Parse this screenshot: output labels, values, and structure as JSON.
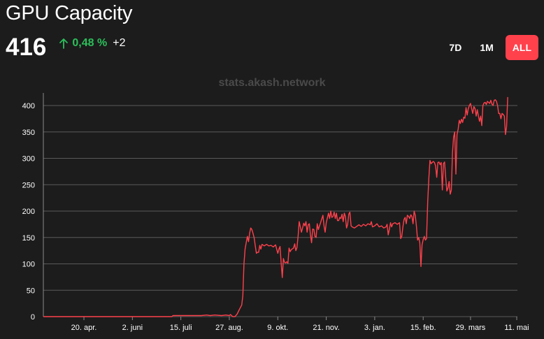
{
  "header": {
    "title": "GPU Capacity",
    "value": "416",
    "change_percent": "0,48 %",
    "change_abs": "+2"
  },
  "range": {
    "options": [
      "7D",
      "1M",
      "ALL"
    ],
    "active": "ALL"
  },
  "watermark": "stats.akash.network",
  "colors": {
    "line": "#ff414c",
    "positive": "#2bbf5a",
    "accent": "#ff414c",
    "background": "#1c1c1c",
    "grid": "#5a5a5a"
  },
  "chart_data": {
    "type": "line",
    "grid": true,
    "ylim": [
      0,
      400
    ],
    "yticks": [
      0,
      50,
      100,
      150,
      200,
      250,
      300,
      350,
      400
    ],
    "xlim": [
      0,
      412
    ],
    "xticks": [
      {
        "day": 36,
        "label": "20. apr."
      },
      {
        "day": 79,
        "label": "2. juni"
      },
      {
        "day": 122,
        "label": "15. juli"
      },
      {
        "day": 165,
        "label": "27. aug."
      },
      {
        "day": 208,
        "label": "9. okt."
      },
      {
        "day": 251,
        "label": "21. nov."
      },
      {
        "day": 294,
        "label": "3. jan."
      },
      {
        "day": 337,
        "label": "15. feb."
      },
      {
        "day": 379,
        "label": "29. mars"
      },
      {
        "day": 420,
        "label": "11. mai"
      }
    ],
    "series": [
      {
        "points": [
          [
            0,
            0
          ],
          [
            50,
            0
          ],
          [
            100,
            0
          ],
          [
            114,
            0
          ],
          [
            115,
            2
          ],
          [
            130,
            2
          ],
          [
            140,
            2
          ],
          [
            145,
            3
          ],
          [
            148,
            2
          ],
          [
            152,
            3
          ],
          [
            158,
            2
          ],
          [
            162,
            3
          ],
          [
            165,
            2
          ],
          [
            166,
            4
          ],
          [
            168,
            0
          ],
          [
            170,
            0
          ],
          [
            172,
            5
          ],
          [
            174,
            14
          ],
          [
            176,
            22
          ],
          [
            177,
            40
          ],
          [
            178,
            100
          ],
          [
            179,
            128
          ],
          [
            180,
            140
          ],
          [
            181,
            152
          ],
          [
            182,
            142
          ],
          [
            183,
            158
          ],
          [
            184,
            168
          ],
          [
            185,
            165
          ],
          [
            186,
            158
          ],
          [
            187,
            150
          ],
          [
            188,
            135
          ],
          [
            189,
            120
          ],
          [
            190,
            122
          ],
          [
            191,
            122
          ],
          [
            192,
            135
          ],
          [
            193,
            128
          ],
          [
            194,
            137
          ],
          [
            196,
            134
          ],
          [
            198,
            137
          ],
          [
            200,
            134
          ],
          [
            202,
            135
          ],
          [
            204,
            132
          ],
          [
            206,
            136
          ],
          [
            207,
            128
          ],
          [
            208,
            120
          ],
          [
            209,
            128
          ],
          [
            210,
            133
          ],
          [
            211,
            102
          ],
          [
            212,
            74
          ],
          [
            213,
            110
          ],
          [
            214,
            103
          ],
          [
            215,
            102
          ],
          [
            216,
            104
          ],
          [
            217,
            101
          ],
          [
            218,
            130
          ],
          [
            219,
            123
          ],
          [
            220,
            127
          ],
          [
            222,
            130
          ],
          [
            223,
            138
          ],
          [
            224,
            125
          ],
          [
            225,
            131
          ],
          [
            226,
            152
          ],
          [
            227,
            180
          ],
          [
            228,
            170
          ],
          [
            229,
            160
          ],
          [
            230,
            168
          ],
          [
            231,
            177
          ],
          [
            232,
            172
          ],
          [
            233,
            180
          ],
          [
            234,
            160
          ],
          [
            235,
            174
          ],
          [
            236,
            176
          ],
          [
            237,
            155
          ],
          [
            238,
            140
          ],
          [
            239,
            166
          ],
          [
            240,
            165
          ],
          [
            241,
            152
          ],
          [
            242,
            150
          ],
          [
            243,
            176
          ],
          [
            244,
            165
          ],
          [
            245,
            172
          ],
          [
            246,
            178
          ],
          [
            247,
            185
          ],
          [
            248,
            192
          ],
          [
            249,
            172
          ],
          [
            250,
            160
          ],
          [
            251,
            178
          ],
          [
            252,
            187
          ],
          [
            253,
            196
          ],
          [
            254,
            186
          ],
          [
            255,
            200
          ],
          [
            256,
            188
          ],
          [
            257,
            190
          ],
          [
            258,
            198
          ],
          [
            259,
            186
          ],
          [
            260,
            196
          ],
          [
            261,
            182
          ],
          [
            262,
            182
          ],
          [
            263,
            188
          ],
          [
            264,
            186
          ],
          [
            265,
            194
          ],
          [
            266,
            180
          ],
          [
            267,
            196
          ],
          [
            268,
            190
          ],
          [
            269,
            168
          ],
          [
            270,
            175
          ],
          [
            271,
            194
          ],
          [
            272,
            198
          ],
          [
            273,
            172
          ],
          [
            274,
            170
          ],
          [
            276,
            168
          ],
          [
            278,
            171
          ],
          [
            280,
            174
          ],
          [
            282,
            171
          ],
          [
            284,
            175
          ],
          [
            286,
            172
          ],
          [
            288,
            176
          ],
          [
            290,
            174
          ],
          [
            291,
            180
          ],
          [
            292,
            170
          ],
          [
            294,
            172
          ],
          [
            296,
            176
          ],
          [
            298,
            170
          ],
          [
            300,
            172
          ],
          [
            302,
            168
          ],
          [
            304,
            170
          ],
          [
            305,
            175
          ],
          [
            306,
            155
          ],
          [
            307,
            166
          ],
          [
            308,
            178
          ],
          [
            309,
            170
          ],
          [
            310,
            176
          ],
          [
            312,
            178
          ],
          [
            314,
            175
          ],
          [
            316,
            178
          ],
          [
            317,
            148
          ],
          [
            318,
            152
          ],
          [
            319,
            170
          ],
          [
            320,
            184
          ],
          [
            321,
            188
          ],
          [
            322,
            176
          ],
          [
            323,
            192
          ],
          [
            324,
            190
          ],
          [
            325,
            186
          ],
          [
            326,
            193
          ],
          [
            327,
            190
          ],
          [
            328,
            176
          ],
          [
            329,
            200
          ],
          [
            330,
            192
          ],
          [
            331,
            172
          ],
          [
            332,
            145
          ],
          [
            333,
            150
          ],
          [
            334,
            140
          ],
          [
            335,
            95
          ],
          [
            336,
            136
          ],
          [
            337,
            146
          ],
          [
            338,
            152
          ],
          [
            339,
            145
          ],
          [
            340,
            148
          ],
          [
            341,
            218
          ],
          [
            342,
            262
          ],
          [
            343,
            296
          ],
          [
            344,
            290
          ],
          [
            345,
            292
          ],
          [
            346,
            294
          ],
          [
            347,
            292
          ],
          [
            348,
            286
          ],
          [
            349,
            264
          ],
          [
            350,
            292
          ],
          [
            351,
            293
          ],
          [
            352,
            288
          ],
          [
            353,
            292
          ],
          [
            354,
            240
          ],
          [
            355,
            290
          ],
          [
            356,
            293
          ],
          [
            357,
            264
          ],
          [
            358,
            238
          ],
          [
            359,
            244
          ],
          [
            360,
            256
          ],
          [
            361,
            232
          ],
          [
            362,
            240
          ],
          [
            363,
            310
          ],
          [
            364,
            340
          ],
          [
            365,
            350
          ],
          [
            366,
            270
          ],
          [
            367,
            345
          ],
          [
            368,
            355
          ],
          [
            369,
            372
          ],
          [
            370,
            366
          ],
          [
            371,
            374
          ],
          [
            372,
            368
          ],
          [
            373,
            378
          ],
          [
            374,
            376
          ],
          [
            375,
            396
          ],
          [
            376,
            382
          ],
          [
            377,
            394
          ],
          [
            378,
            400
          ],
          [
            379,
            404
          ],
          [
            380,
            394
          ],
          [
            381,
            385
          ],
          [
            382,
            398
          ],
          [
            383,
            394
          ],
          [
            384,
            380
          ],
          [
            385,
            392
          ],
          [
            386,
            380
          ],
          [
            387,
            370
          ],
          [
            388,
            380
          ],
          [
            389,
            362
          ],
          [
            390,
            400
          ],
          [
            391,
            405
          ],
          [
            392,
            406
          ],
          [
            393,
            402
          ],
          [
            394,
            408
          ],
          [
            395,
            406
          ],
          [
            396,
            404
          ],
          [
            397,
            410
          ],
          [
            398,
            403
          ],
          [
            399,
            400
          ],
          [
            400,
            410
          ],
          [
            401,
            411
          ],
          [
            402,
            408
          ],
          [
            403,
            400
          ],
          [
            404,
            385
          ],
          [
            405,
            385
          ],
          [
            406,
            375
          ],
          [
            407,
            385
          ],
          [
            408,
            383
          ],
          [
            409,
            380
          ],
          [
            410,
            345
          ],
          [
            411,
            360
          ],
          [
            412,
            416
          ]
        ]
      }
    ]
  }
}
